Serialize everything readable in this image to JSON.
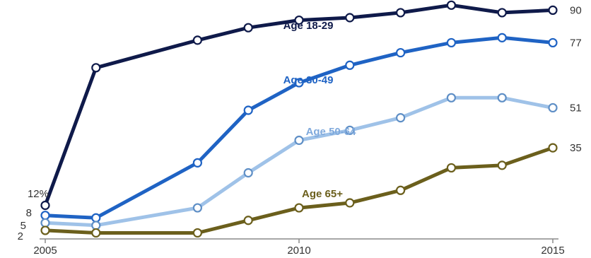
{
  "chart_data": {
    "type": "line",
    "title": "",
    "xlabel": "",
    "ylabel": "",
    "x_ticks": [
      "2005",
      "2010",
      "2015"
    ],
    "xlim": [
      2005,
      2015
    ],
    "ylim": [
      0,
      95
    ],
    "grid": false,
    "legend": "inline labels",
    "series": [
      {
        "name": "Age 18-29",
        "color": "#0f1a4a",
        "x": [
          2005,
          2006,
          2008,
          2009,
          2010,
          2011,
          2012,
          2013,
          2014,
          2015
        ],
        "values": [
          12,
          67,
          78,
          83,
          86,
          87,
          89,
          92,
          89,
          90
        ],
        "start_label": "12%",
        "end_label": "90"
      },
      {
        "name": "Age 30-49",
        "color": "#1f63c4",
        "x": [
          2005,
          2006,
          2008,
          2009,
          2010,
          2011,
          2012,
          2013,
          2014,
          2015
        ],
        "values": [
          8,
          7,
          29,
          50,
          61,
          68,
          73,
          77,
          79,
          77
        ],
        "start_label": "8",
        "end_label": "77"
      },
      {
        "name": "Age 50-64",
        "color": "#9fc2e8",
        "x": [
          2005,
          2006,
          2008,
          2009,
          2010,
          2011,
          2012,
          2013,
          2014,
          2015
        ],
        "values": [
          5,
          4,
          11,
          25,
          38,
          42,
          47,
          55,
          55,
          51
        ],
        "start_label": "5",
        "end_label": "51"
      },
      {
        "name": "Age 65+",
        "color": "#6b5f1c",
        "x": [
          2005,
          2006,
          2008,
          2009,
          2010,
          2011,
          2012,
          2013,
          2014,
          2015
        ],
        "values": [
          2,
          1,
          1,
          6,
          11,
          13,
          18,
          27,
          28,
          35
        ],
        "start_label": "2",
        "end_label": "35"
      }
    ]
  }
}
